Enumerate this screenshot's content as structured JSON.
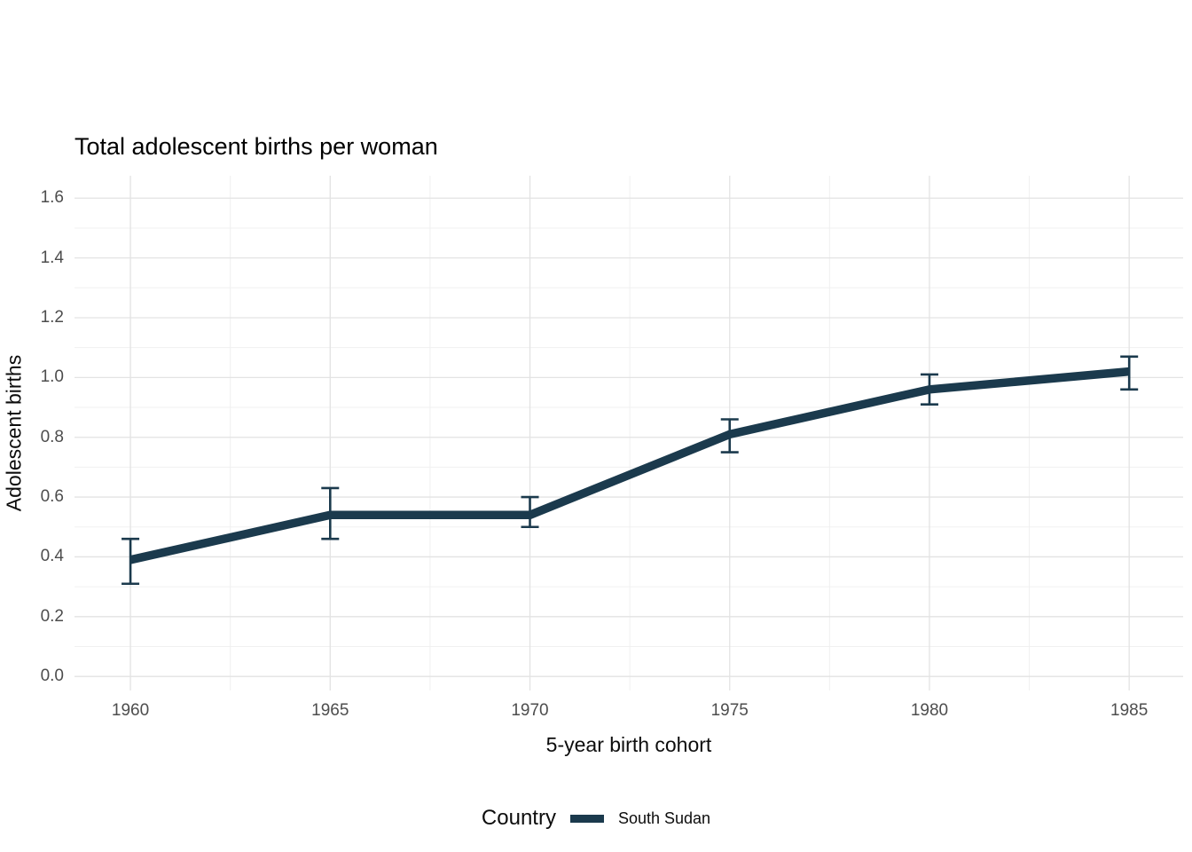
{
  "colors": {
    "line": "#1b3a4d",
    "grid_major": "#e3e3e3",
    "grid_minor": "#f0f0f0",
    "tick_text": "#4d4d4d",
    "title_text": "#000000"
  },
  "chart_data": {
    "type": "line",
    "title": "Total adolescent births per woman",
    "xlabel": "5-year birth cohort",
    "ylabel": "Adolescent births",
    "x": [
      1960,
      1965,
      1970,
      1975,
      1980,
      1985
    ],
    "series": [
      {
        "name": "South Sudan",
        "values": [
          0.39,
          0.54,
          0.54,
          0.81,
          0.96,
          1.02
        ],
        "error_low": [
          0.31,
          0.46,
          0.5,
          0.75,
          0.91,
          0.96
        ],
        "error_high": [
          0.46,
          0.63,
          0.6,
          0.86,
          1.01,
          1.07
        ]
      }
    ],
    "xticks": {
      "values": [
        1960,
        1965,
        1970,
        1975,
        1980,
        1985
      ],
      "labels": [
        "1960",
        "1965",
        "1970",
        "1975",
        "1980",
        "1985"
      ]
    },
    "yticks": {
      "values": [
        0.0,
        0.2,
        0.4,
        0.6,
        0.8,
        1.0,
        1.2,
        1.4,
        1.6
      ],
      "labels": [
        "0.0",
        "0.2",
        "0.4",
        "0.6",
        "0.8",
        "1.0",
        "1.2",
        "1.4",
        "1.6"
      ]
    },
    "xlim": [
      1958.6,
      1986.35
    ],
    "ylim": [
      -0.047,
      1.675
    ],
    "grid": true,
    "legend_position": "bottom"
  },
  "legend": {
    "label": "Country",
    "items": [
      {
        "name": "South Sudan",
        "color": "#1b3a4d"
      }
    ]
  }
}
